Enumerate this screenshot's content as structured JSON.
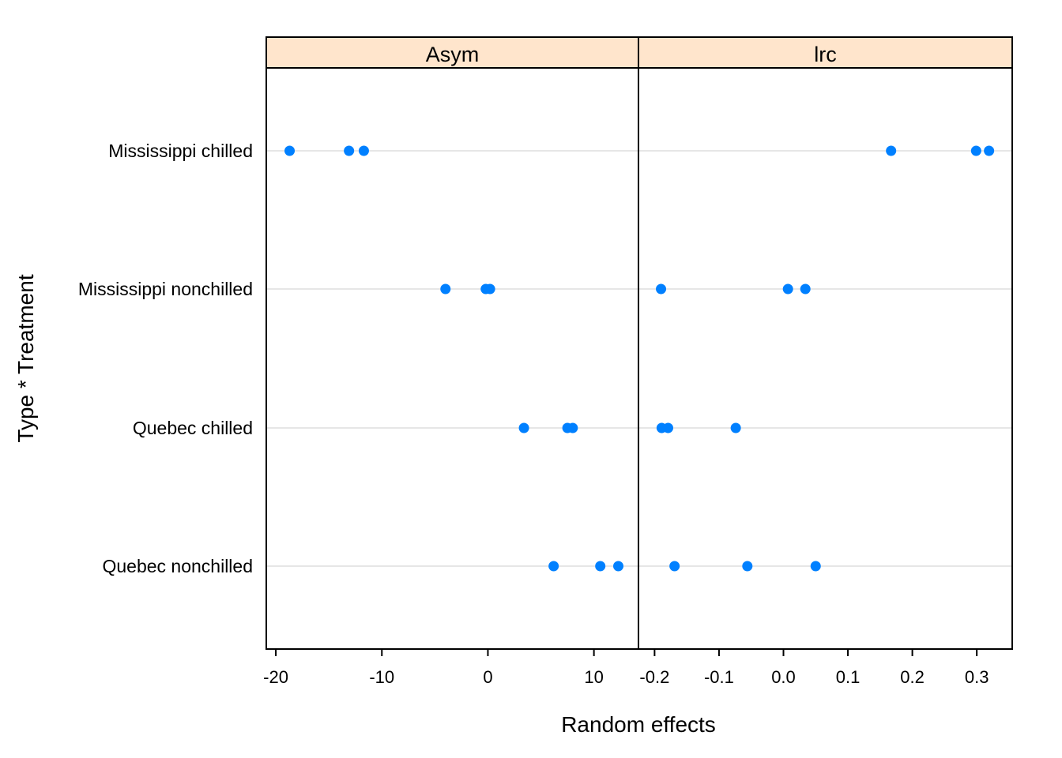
{
  "chart_data": {
    "type": "scatter",
    "subtype": "dotplot",
    "xlabel": "Random effects",
    "ylabel": "Type * Treatment",
    "categories": [
      "Mississippi chilled",
      "Mississippi nonchilled",
      "Quebec chilled",
      "Quebec nonchilled"
    ],
    "grid": "horizontal lines at categories",
    "point_color": "#0080ff",
    "strip_color": "#ffe5cc",
    "panels": [
      {
        "name": "Asym",
        "xlim": [
          -20.9,
          14.2
        ],
        "ticks": [
          -20,
          -10,
          0,
          10
        ],
        "tick_labels": [
          "-20",
          "-10",
          "0",
          "10"
        ],
        "points": [
          {
            "category": "Mississippi chilled",
            "values": [
              -18.7,
              -13.1,
              -11.7
            ]
          },
          {
            "category": "Mississippi nonchilled",
            "values": [
              -4.0,
              -0.2,
              0.2
            ]
          },
          {
            "category": "Quebec chilled",
            "values": [
              3.4,
              7.5,
              8.0
            ]
          },
          {
            "category": "Quebec nonchilled",
            "values": [
              6.2,
              10.6,
              12.3
            ]
          }
        ]
      },
      {
        "name": "lrc",
        "xlim": [
          -0.225,
          0.355
        ],
        "ticks": [
          -0.2,
          -0.1,
          0.0,
          0.1,
          0.2,
          0.3
        ],
        "tick_labels": [
          "-0.2",
          "-0.1",
          "0.0",
          "0.1",
          "0.2",
          "0.3"
        ],
        "points": [
          {
            "category": "Mississippi chilled",
            "values": [
              0.167,
              0.299,
              0.319
            ]
          },
          {
            "category": "Mississippi nonchilled",
            "values": [
              -0.19,
              0.007,
              0.034
            ]
          },
          {
            "category": "Quebec chilled",
            "values": [
              -0.189,
              -0.179,
              -0.074
            ]
          },
          {
            "category": "Quebec nonchilled",
            "values": [
              -0.169,
              -0.056,
              0.05
            ]
          }
        ]
      }
    ]
  }
}
